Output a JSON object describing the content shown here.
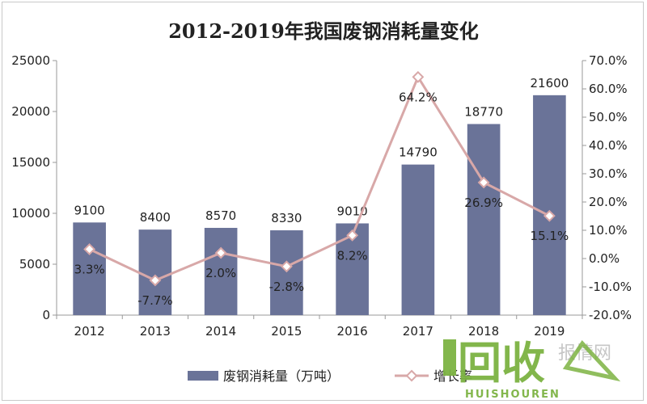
{
  "chart_data": {
    "type": "bar+line",
    "title": "2012-2019年我国废钢消耗量变化",
    "categories": [
      "2012",
      "2013",
      "2014",
      "2015",
      "2016",
      "2017",
      "2018",
      "2019"
    ],
    "series": [
      {
        "name": "废钢消耗量（万吨）",
        "type": "bar",
        "axis": "left",
        "color": "#6a7398",
        "values": [
          9100,
          8400,
          8570,
          8330,
          9010,
          14790,
          18770,
          21600
        ],
        "labels": [
          "9100",
          "8400",
          "8570",
          "8330",
          "9010",
          "14790",
          "18770",
          "21600"
        ]
      },
      {
        "name": "增长率",
        "type": "line",
        "axis": "right",
        "color": "#d8a8a8",
        "values": [
          3.3,
          -7.7,
          2.0,
          -2.8,
          8.2,
          64.2,
          26.9,
          15.1
        ],
        "labels": [
          "3.3%",
          "-7.7%",
          "2.0%",
          "-2.8%",
          "8.2%",
          "64.2%",
          "26.9%",
          "15.1%"
        ]
      }
    ],
    "y_left": {
      "min": 0,
      "max": 25000,
      "step": 5000,
      "ticks": [
        "0",
        "5000",
        "10000",
        "15000",
        "20000",
        "25000"
      ]
    },
    "y_right": {
      "min": -20,
      "max": 70,
      "step": 10,
      "ticks": [
        "-20.0%",
        "-10.0%",
        "0.0%",
        "10.0%",
        "20.0%",
        "30.0%",
        "40.0%",
        "50.0%",
        "60.0%",
        "70.0%"
      ]
    },
    "grid": false,
    "legend": "bottom"
  },
  "watermark": {
    "big": "回收",
    "sub": "HUISHOUREN",
    "grey": "报情网",
    "color": "#7cb342"
  }
}
